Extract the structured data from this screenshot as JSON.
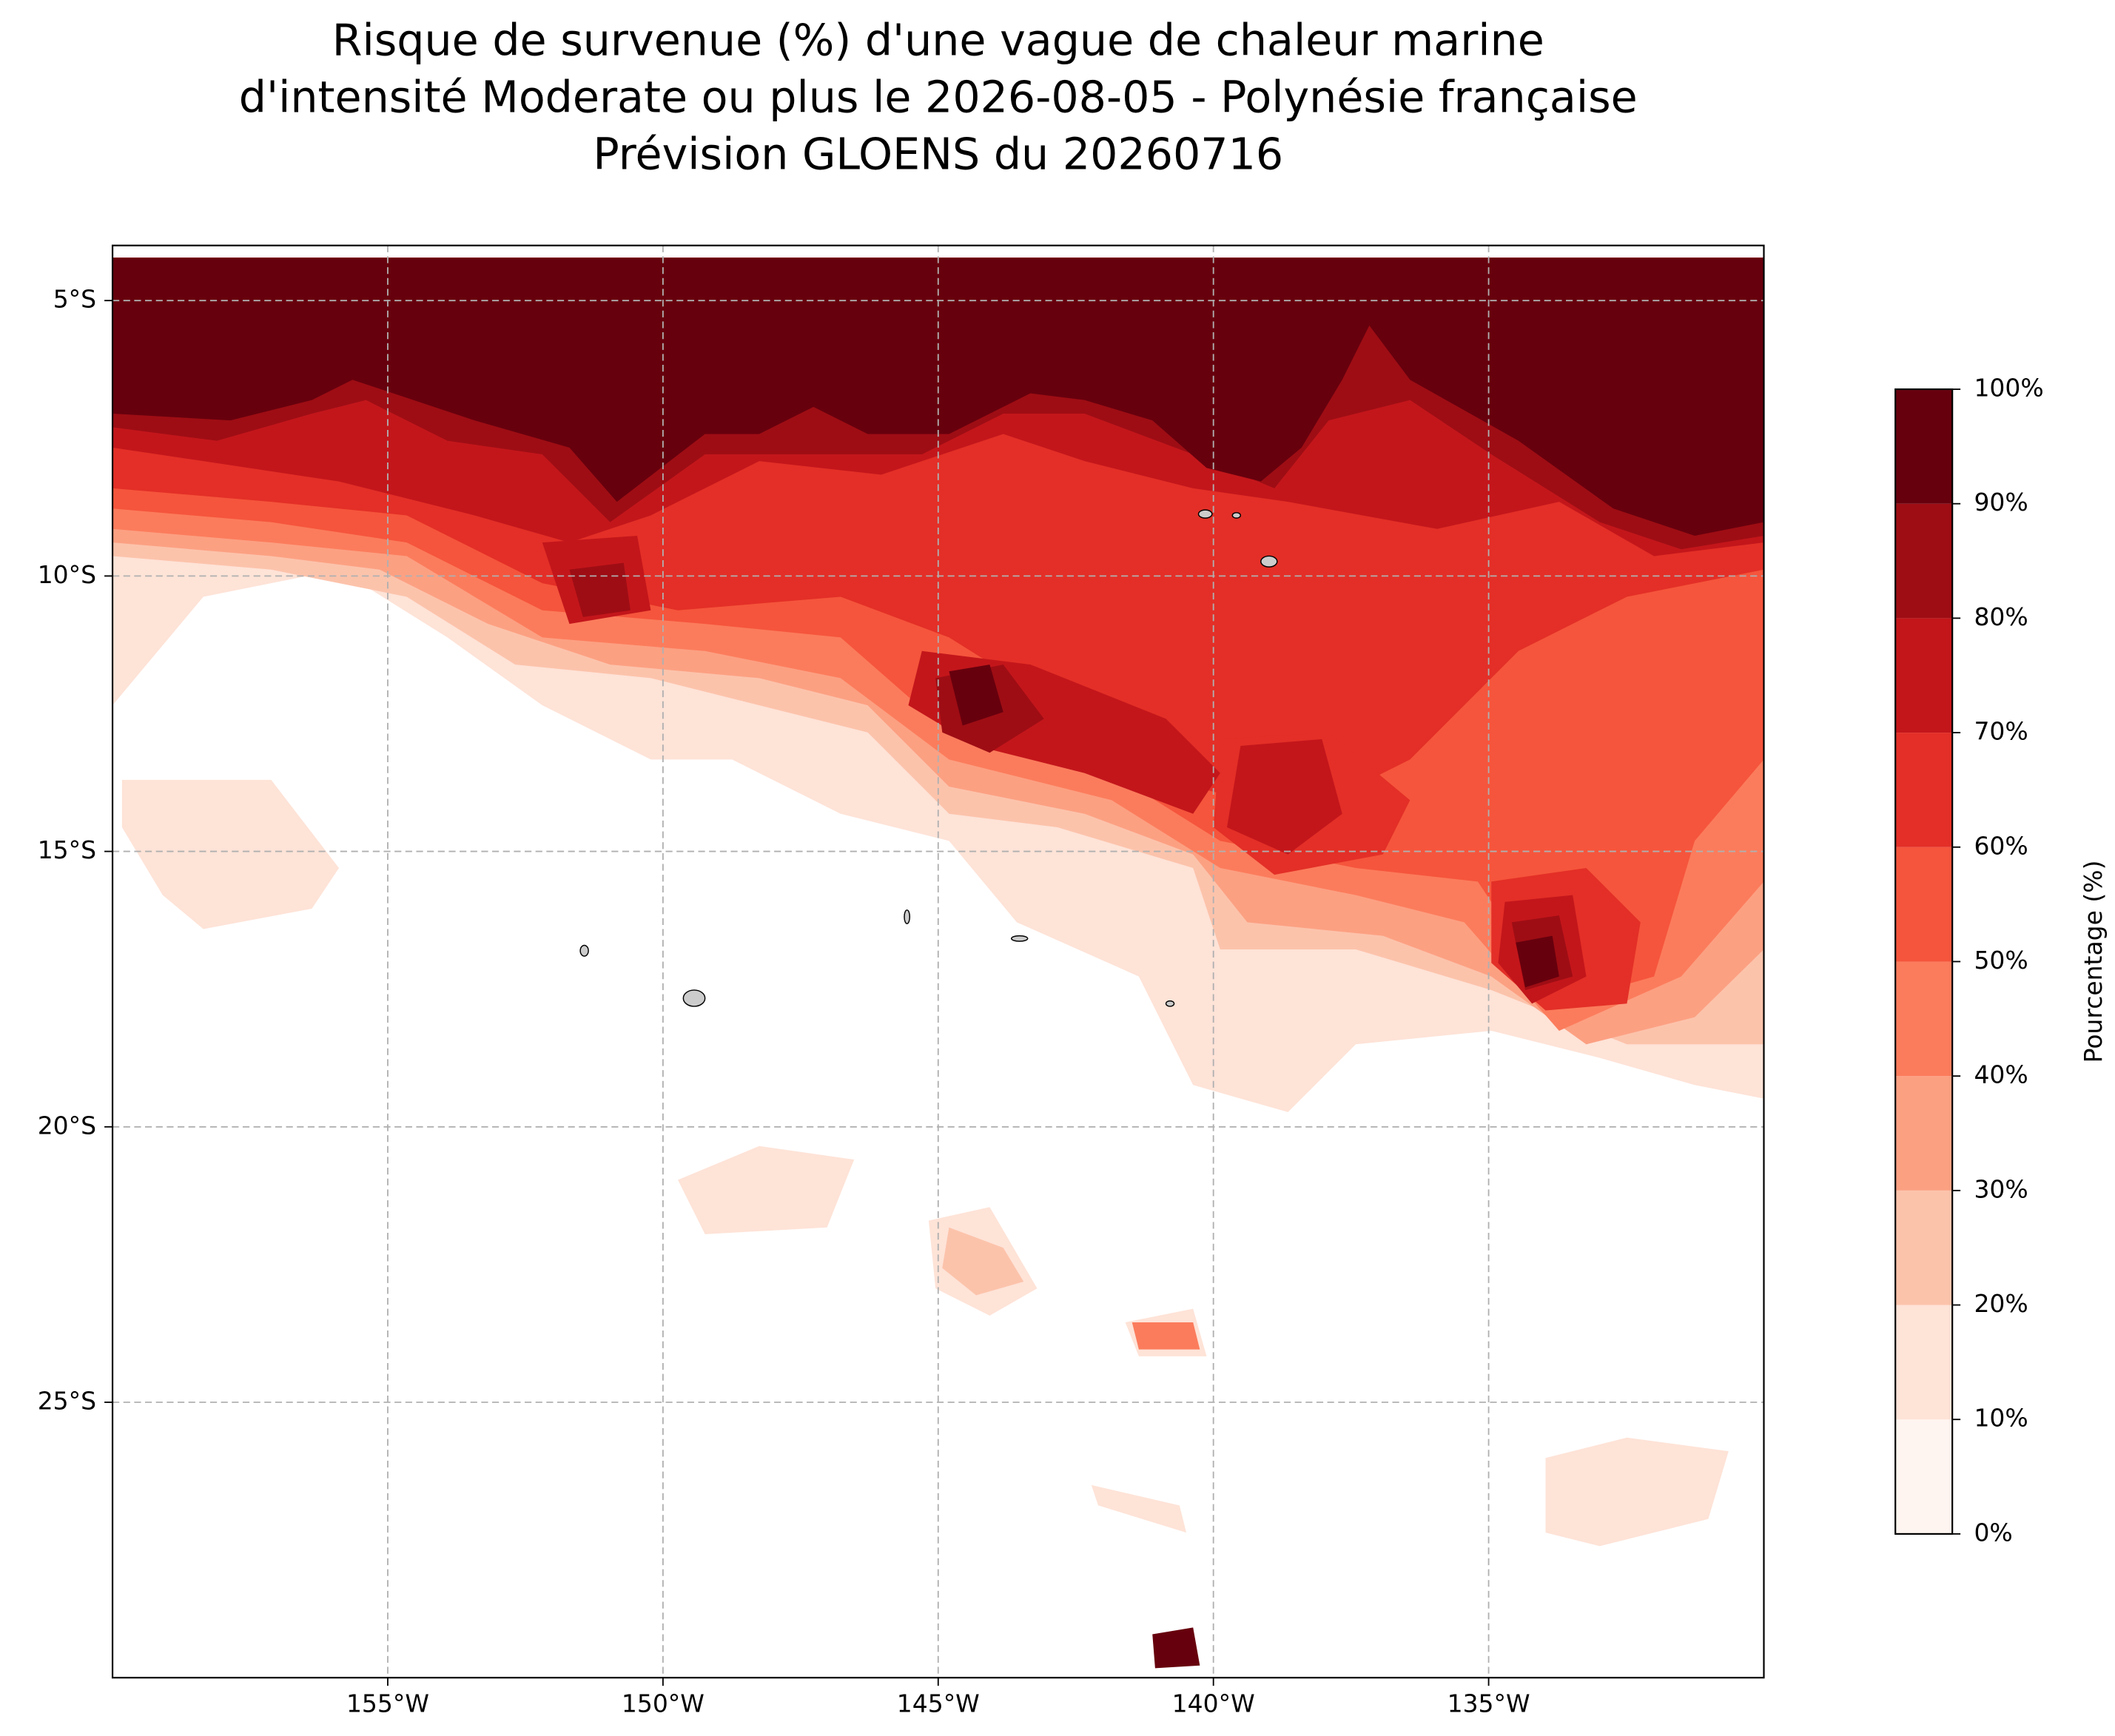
{
  "chart_data": {
    "type": "contourf-map",
    "title": [
      "Risque de survenue (%) d'une vague de chaleur marine",
      "d'intensité Moderate ou plus le 2026-08-05 - Polynésie française",
      "Prévision GLOENS du 20260716"
    ],
    "xlim": [
      -160,
      -130
    ],
    "ylim": [
      -30,
      -4
    ],
    "xticks": [
      {
        "value": -155,
        "label": "155°W"
      },
      {
        "value": -150,
        "label": "150°W"
      },
      {
        "value": -145,
        "label": "145°W"
      },
      {
        "value": -140,
        "label": "140°W"
      },
      {
        "value": -135,
        "label": "135°W"
      }
    ],
    "yticks": [
      {
        "value": -5,
        "label": "5°S"
      },
      {
        "value": -10,
        "label": "10°S"
      },
      {
        "value": -15,
        "label": "15°S"
      },
      {
        "value": -20,
        "label": "20°S"
      },
      {
        "value": -25,
        "label": "25°S"
      }
    ],
    "grid": true,
    "colorbar": {
      "label": "Pourcentage (%)",
      "ticks": [
        {
          "value": 0,
          "label": "0%"
        },
        {
          "value": 10,
          "label": "10%"
        },
        {
          "value": 20,
          "label": "20%"
        },
        {
          "value": 30,
          "label": "30%"
        },
        {
          "value": 40,
          "label": "40%"
        },
        {
          "value": 50,
          "label": "50%"
        },
        {
          "value": 60,
          "label": "60%"
        },
        {
          "value": 70,
          "label": "70%"
        },
        {
          "value": 80,
          "label": "80%"
        },
        {
          "value": 90,
          "label": "90%"
        },
        {
          "value": 100,
          "label": "100%"
        }
      ],
      "colors": [
        "#fff5f0",
        "#fee3d7",
        "#fcc3ab",
        "#fca082",
        "#fb7c5c",
        "#f5553c",
        "#e32f27",
        "#c3161b",
        "#9e0d14",
        "#67000d"
      ]
    }
  }
}
